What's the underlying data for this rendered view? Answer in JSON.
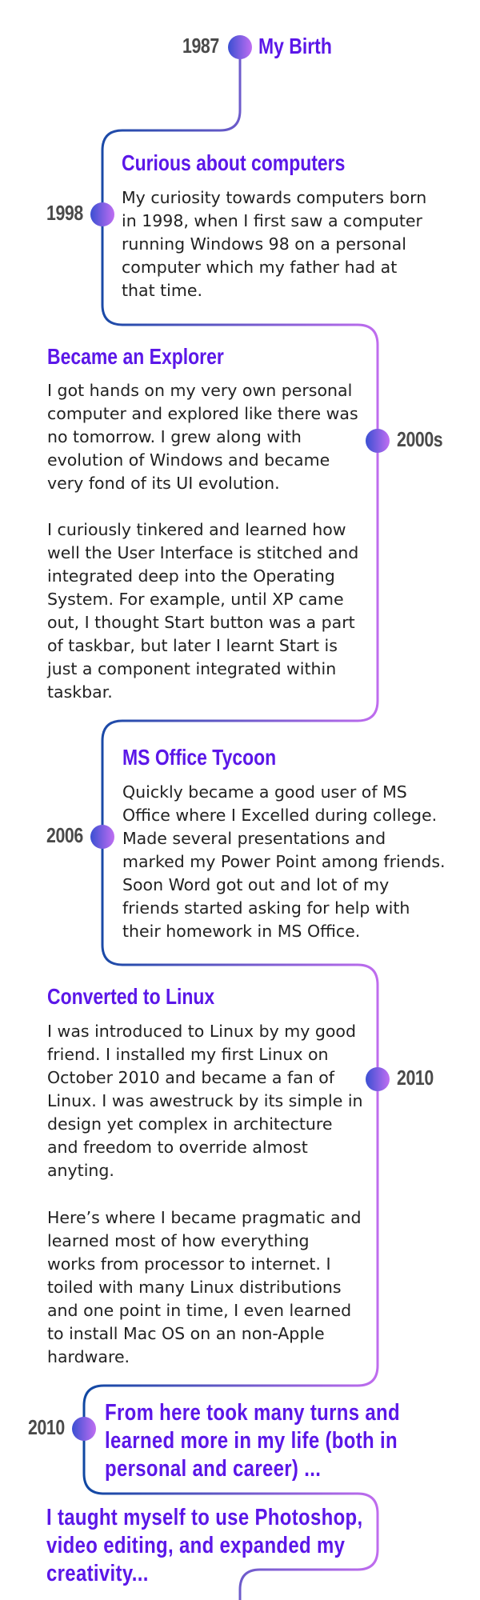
{
  "milestones": [
    {
      "year": "1987",
      "title": "My Birth"
    },
    {
      "year": "1998",
      "title": "Curious about computers",
      "paragraphs": [
        [
          "My curiosity towards computers born",
          "in 1998, when I first saw a computer",
          "running Windows 98 on a personal",
          "computer which my father had at",
          "that time."
        ]
      ]
    },
    {
      "year": "2000s",
      "title": "Became an Explorer",
      "paragraphs": [
        [
          "I got hands on my very own personal",
          "computer and explored like there was",
          "no tomorrow. I grew along with",
          "evolution of Windows and became",
          "very fond of its UI evolution."
        ],
        [
          "I curiously tinkered and learned how",
          "well the User Interface is stitched and",
          "integrated deep into the Operating",
          "System. For example, until XP came",
          "out, I thought Start button was a part",
          "of taskbar, but later I learnt Start is",
          "just a component integrated within",
          "taskbar."
        ]
      ]
    },
    {
      "year": "2006",
      "title": "MS Office Tycoon",
      "paragraphs": [
        [
          "Quickly became a good user of MS",
          "Office where I Excelled during college.",
          "Made several presentations and",
          "marked my Power Point among friends.",
          "Soon Word got out and lot of my",
          "friends started asking for help with",
          "their homework in MS Office."
        ]
      ]
    },
    {
      "year": "2010",
      "title": "Converted to Linux",
      "paragraphs": [
        [
          "I was introduced to Linux by my good",
          "friend. I installed my first Linux on",
          "October 2010 and became a fan of",
          "Linux. I was awestruck by its simple in",
          "design yet complex in architecture",
          "and freedom to override almost",
          "anyting."
        ],
        [
          "Here’s where I became pragmatic and",
          "learned most of how everything",
          "works from processor to internet. I",
          "toiled with many Linux distributions",
          "and one point in time, I even learned",
          "to install Mac OS on an non-Apple",
          "hardware."
        ]
      ]
    },
    {
      "year": "2010",
      "lines": [
        "From here took many turns and",
        "learned more in my life (both in",
        "personal and career) ..."
      ]
    },
    {
      "lines": [
        "I taught myself to use Photoshop,",
        "video editing, and expanded my",
        "creativity..."
      ]
    }
  ],
  "colors": {
    "blue": "#0d47a1",
    "purple": "#c36df0",
    "title": "#5b17e8",
    "year": "#4a4a4a"
  }
}
